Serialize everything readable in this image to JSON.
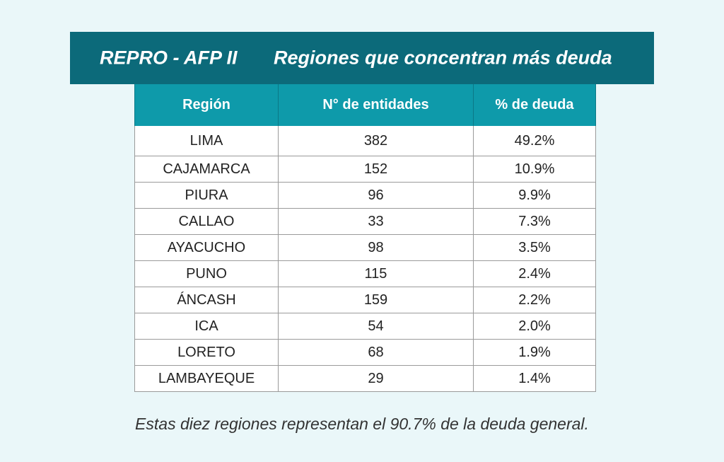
{
  "header": {
    "left_title": "REPRO - AFP II",
    "right_title": "Regiones que concentran más deuda"
  },
  "table": {
    "columns": [
      "Región",
      "N° de entidades",
      "% de deuda"
    ],
    "rows": [
      [
        "LIMA",
        "382",
        "49.2%"
      ],
      [
        "CAJAMARCA",
        "152",
        "10.9%"
      ],
      [
        "PIURA",
        "96",
        "9.9%"
      ],
      [
        "CALLAO",
        "33",
        "7.3%"
      ],
      [
        "AYACUCHO",
        "98",
        "3.5%"
      ],
      [
        "PUNO",
        "115",
        "2.4%"
      ],
      [
        "ÁNCASH",
        "159",
        "2.2%"
      ],
      [
        "ICA",
        "54",
        "2.0%"
      ],
      [
        "LORETO",
        "68",
        "1.9%"
      ],
      [
        "LAMBAYEQUE",
        "29",
        "1.4%"
      ]
    ]
  },
  "footnote": "Estas diez regiones representan el 90.7% de la deuda general.",
  "colors": {
    "title_bar": "#0c6a7a",
    "table_header": "#0e9aaa",
    "background": "#eaf7f9"
  }
}
